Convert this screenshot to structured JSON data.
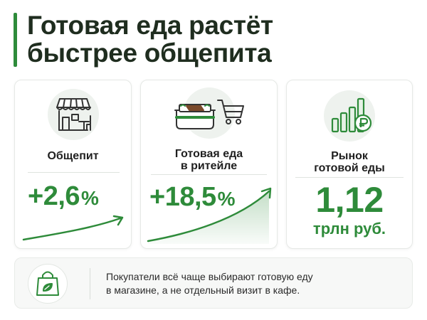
{
  "title": {
    "line1": "Готовая еда растёт",
    "line2": "быстрее общепита"
  },
  "cards": [
    {
      "icon": "cafe-storefront-icon",
      "label_lines": [
        "Общепит"
      ],
      "value": "+2,6",
      "unit": "%"
    },
    {
      "icon": "ready-meal-cart-icon",
      "label_lines": [
        "Готовая еда",
        "в ритейле"
      ],
      "value": "+18,5",
      "unit": "%"
    },
    {
      "icon": "ruble-growth-chart-icon",
      "label_lines": [
        "Рынок",
        "готовой еды"
      ],
      "value": "1,12",
      "unit": "трлн руб."
    }
  ],
  "footer": {
    "icon": "eco-shopping-bag-icon",
    "line1": "Покупатели всё чаще выбирают готовую еду",
    "line2": "в магазине, а не отдельный визит в кафе."
  },
  "colors": {
    "accent_green": "#2e8b3a",
    "icon_circle_bg": "#eef2ee",
    "icon_stroke": "#333333"
  }
}
